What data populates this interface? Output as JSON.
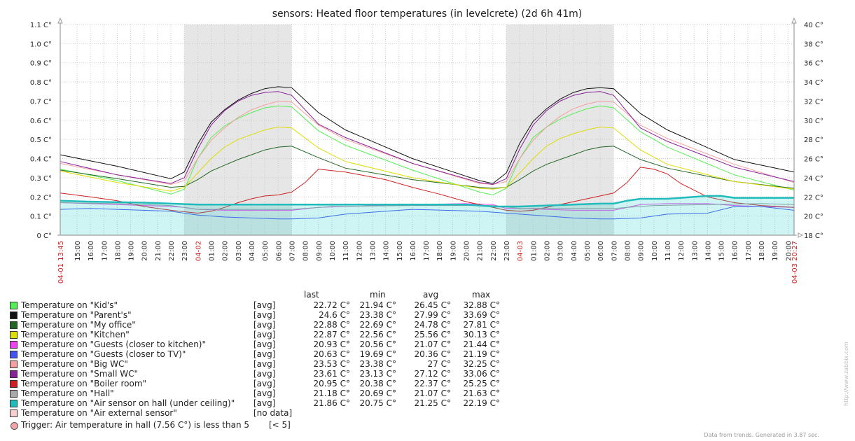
{
  "chart_data": {
    "type": "line",
    "title": "sensors: Heated floor temperatures (in levelcrete) (2d 6h 41m)",
    "left_axis": {
      "ticks": [
        "0 C°",
        "0.1 C°",
        "0.2 C°",
        "0.3 C°",
        "0.4 C°",
        "0.5 C°",
        "0.6 C°",
        "0.7 C°",
        "0.8 C°",
        "0.9 C°",
        "1.0 C°",
        "1.1 C°"
      ],
      "range": [
        0,
        1.1
      ]
    },
    "right_axis": {
      "ticks": [
        "18 C°",
        "20 C°",
        "22 C°",
        "24 C°",
        "26 C°",
        "28 C°",
        "30 C°",
        "32 C°",
        "34 C°",
        "36 C°",
        "38 C°",
        "40 C°"
      ],
      "range": [
        18,
        40
      ]
    },
    "x_range": [
      13.75,
      68.45
    ],
    "x_start_label": "04-01 13:45",
    "x_end_label": "04-03 20:27",
    "x_ticks": [
      {
        "t": 15,
        "label": "15:00"
      },
      {
        "t": 16,
        "label": "16:00"
      },
      {
        "t": 17,
        "label": "17:00"
      },
      {
        "t": 18,
        "label": "18:00"
      },
      {
        "t": 19,
        "label": "19:00"
      },
      {
        "t": 20,
        "label": "20:00"
      },
      {
        "t": 21,
        "label": "21:00"
      },
      {
        "t": 22,
        "label": "22:00"
      },
      {
        "t": 23,
        "label": "23:00"
      },
      {
        "t": 24,
        "label": "04-02",
        "date": true
      },
      {
        "t": 25,
        "label": "01:00"
      },
      {
        "t": 26,
        "label": "02:00"
      },
      {
        "t": 27,
        "label": "03:00"
      },
      {
        "t": 28,
        "label": "04:00"
      },
      {
        "t": 29,
        "label": "05:00"
      },
      {
        "t": 30,
        "label": "06:00"
      },
      {
        "t": 31,
        "label": "07:00"
      },
      {
        "t": 32,
        "label": "08:00"
      },
      {
        "t": 33,
        "label": "09:00"
      },
      {
        "t": 34,
        "label": "10:00"
      },
      {
        "t": 35,
        "label": "11:00"
      },
      {
        "t": 36,
        "label": "12:00"
      },
      {
        "t": 37,
        "label": "13:00"
      },
      {
        "t": 38,
        "label": "14:00"
      },
      {
        "t": 39,
        "label": "15:00"
      },
      {
        "t": 40,
        "label": "16:00"
      },
      {
        "t": 41,
        "label": "17:00"
      },
      {
        "t": 42,
        "label": "18:00"
      },
      {
        "t": 43,
        "label": "19:00"
      },
      {
        "t": 44,
        "label": "20:00"
      },
      {
        "t": 45,
        "label": "21:00"
      },
      {
        "t": 46,
        "label": "22:00"
      },
      {
        "t": 47,
        "label": "23:00"
      },
      {
        "t": 48,
        "label": "04-03",
        "date": true
      },
      {
        "t": 49,
        "label": "01:00"
      },
      {
        "t": 50,
        "label": "02:00"
      },
      {
        "t": 51,
        "label": "03:00"
      },
      {
        "t": 52,
        "label": "04:00"
      },
      {
        "t": 53,
        "label": "05:00"
      },
      {
        "t": 54,
        "label": "06:00"
      },
      {
        "t": 55,
        "label": "07:00"
      },
      {
        "t": 56,
        "label": "08:00"
      },
      {
        "t": 57,
        "label": "09:00"
      },
      {
        "t": 58,
        "label": "10:00"
      },
      {
        "t": 59,
        "label": "11:00"
      },
      {
        "t": 60,
        "label": "12:00"
      },
      {
        "t": 61,
        "label": "13:00"
      },
      {
        "t": 62,
        "label": "14:00"
      },
      {
        "t": 63,
        "label": "15:00"
      },
      {
        "t": 64,
        "label": "16:00"
      },
      {
        "t": 65,
        "label": "17:00"
      },
      {
        "t": 66,
        "label": "18:00"
      },
      {
        "t": 67,
        "label": "19:00"
      },
      {
        "t": 68,
        "label": "20:00"
      }
    ],
    "shaded_periods": [
      [
        23,
        31
      ],
      [
        47,
        55
      ]
    ],
    "series": [
      {
        "name": "Kid's",
        "color": "#55ee55",
        "kind": "line",
        "x": [
          13.75,
          18,
          22,
          23,
          24,
          25,
          26,
          27,
          28,
          29,
          30,
          31,
          33,
          35,
          40,
          45,
          46,
          47,
          48,
          49,
          50,
          51,
          52,
          53,
          54,
          55,
          57,
          59,
          64,
          68.45
        ],
        "y": [
          24.9,
          23.7,
          22.3,
          22.8,
          26.0,
          28.2,
          29.4,
          30.2,
          30.8,
          31.3,
          31.5,
          31.4,
          28.9,
          27.4,
          24.8,
          22.5,
          22.2,
          22.9,
          26.0,
          28.2,
          29.3,
          30.1,
          30.7,
          31.2,
          31.5,
          31.3,
          28.8,
          27.2,
          24.3,
          22.7
        ]
      },
      {
        "name": "Parent's",
        "color": "#111111",
        "kind": "line",
        "x": [
          13.75,
          18,
          22,
          23,
          24,
          25,
          26,
          27,
          28,
          29,
          30,
          31,
          33,
          35,
          40,
          45,
          46,
          47,
          48,
          49,
          50,
          51,
          52,
          53,
          54,
          55,
          57,
          59,
          64,
          68.45
        ],
        "y": [
          26.4,
          25.2,
          23.9,
          24.6,
          27.5,
          29.8,
          31.1,
          32.1,
          32.8,
          33.3,
          33.5,
          33.4,
          30.8,
          29.0,
          26.0,
          23.7,
          23.4,
          24.5,
          27.6,
          29.9,
          31.2,
          32.2,
          32.9,
          33.3,
          33.4,
          33.3,
          30.7,
          29.0,
          25.9,
          24.6
        ]
      },
      {
        "name": "My office",
        "color": "#226622",
        "kind": "line",
        "x": [
          13.75,
          18,
          22,
          23,
          24,
          25,
          26,
          27,
          28,
          29,
          30,
          31,
          33,
          35,
          40,
          45,
          46,
          47,
          48,
          49,
          50,
          51,
          52,
          53,
          54,
          55,
          57,
          59,
          64,
          68.45
        ],
        "y": [
          24.8,
          23.9,
          23.0,
          23.1,
          23.8,
          24.7,
          25.3,
          25.9,
          26.4,
          26.9,
          27.2,
          27.3,
          26.1,
          25.0,
          23.8,
          23.0,
          22.9,
          23.0,
          23.8,
          24.7,
          25.4,
          25.9,
          26.4,
          26.9,
          27.2,
          27.3,
          25.9,
          25.0,
          23.6,
          22.9
        ]
      },
      {
        "name": "Kitchen",
        "color": "#dddd00",
        "kind": "line",
        "x": [
          13.75,
          18,
          22,
          23,
          24,
          25,
          26,
          27,
          28,
          29,
          30,
          31,
          33,
          35,
          40,
          45,
          46,
          47,
          48,
          49,
          50,
          51,
          52,
          53,
          54,
          55,
          57,
          59,
          64,
          68.45
        ],
        "y": [
          24.7,
          23.5,
          22.6,
          23.0,
          24.5,
          26.0,
          27.2,
          28.0,
          28.5,
          29.0,
          29.3,
          29.2,
          27.1,
          25.7,
          24.0,
          22.9,
          22.8,
          23.0,
          24.5,
          26.0,
          27.3,
          28.1,
          28.6,
          29.0,
          29.3,
          29.2,
          26.9,
          25.4,
          23.6,
          22.8
        ]
      },
      {
        "name": "Guests (closer to kitchen)",
        "color": "#ee44ee",
        "kind": "line",
        "x": [
          13.75,
          18,
          22,
          23,
          24,
          26,
          28,
          30,
          31,
          33,
          35,
          40,
          44,
          46,
          47,
          48,
          50,
          52,
          54,
          55,
          57,
          59,
          62,
          64,
          66,
          68.45
        ],
        "y": [
          21.4,
          21.2,
          21.0,
          20.9,
          20.7,
          20.6,
          20.6,
          20.6,
          20.6,
          20.9,
          21.0,
          21.2,
          21.3,
          21.2,
          20.8,
          20.8,
          20.7,
          20.6,
          20.6,
          20.6,
          21.2,
          21.3,
          21.3,
          21.1,
          21.0,
          20.9
        ]
      },
      {
        "name": "Guests (closer to TV)",
        "color": "#4455ee",
        "kind": "line",
        "x": [
          13.75,
          16,
          18,
          22,
          24,
          26,
          28,
          30,
          31,
          33,
          35,
          38,
          40,
          45,
          47,
          48,
          50,
          52,
          54,
          55,
          57,
          59,
          62,
          64,
          66,
          68.45
        ],
        "y": [
          20.7,
          20.8,
          20.7,
          20.5,
          20.1,
          19.9,
          19.8,
          19.7,
          19.7,
          19.8,
          20.2,
          20.5,
          20.7,
          20.5,
          20.3,
          20.2,
          20.0,
          19.8,
          19.7,
          19.7,
          19.8,
          20.2,
          20.3,
          21.0,
          21.0,
          20.6
        ]
      },
      {
        "name": "Big WC",
        "color": "#f4a0a0",
        "kind": "line",
        "x": [
          13.75,
          18,
          22,
          23,
          24,
          25,
          26,
          27,
          28,
          29,
          30,
          31,
          33,
          35,
          40,
          45,
          46,
          47,
          48,
          49,
          50,
          51,
          52,
          53,
          54,
          55,
          57,
          59,
          64,
          68.45
        ],
        "y": [
          25.5,
          24.3,
          23.3,
          23.7,
          26.0,
          27.9,
          29.2,
          30.3,
          31.1,
          31.6,
          32.0,
          31.9,
          29.5,
          28.0,
          25.5,
          23.4,
          23.3,
          23.6,
          26.0,
          27.9,
          29.3,
          30.4,
          31.2,
          31.7,
          32.0,
          31.9,
          29.5,
          28.1,
          25.4,
          23.5
        ]
      },
      {
        "name": "Small WC",
        "color": "#882299",
        "kind": "line",
        "x": [
          13.75,
          18,
          22,
          23,
          24,
          25,
          26,
          27,
          28,
          29,
          30,
          31,
          33,
          35,
          40,
          45,
          46,
          47,
          48,
          49,
          50,
          51,
          52,
          53,
          54,
          55,
          57,
          59,
          64,
          68.45
        ],
        "y": [
          25.7,
          24.3,
          23.4,
          24.0,
          27.0,
          29.5,
          31.0,
          32.0,
          32.6,
          32.9,
          33.0,
          32.6,
          29.6,
          28.2,
          25.5,
          23.5,
          23.3,
          23.9,
          27.0,
          29.5,
          31.0,
          32.0,
          32.6,
          32.9,
          33.0,
          32.6,
          29.2,
          27.8,
          25.1,
          23.6
        ]
      },
      {
        "name": "Boiler room",
        "color": "#cc2222",
        "kind": "line",
        "x": [
          13.75,
          16,
          18,
          20,
          22,
          24,
          25,
          26,
          27,
          28,
          29,
          30,
          31,
          32,
          33,
          35,
          38,
          40,
          42,
          44,
          46,
          47,
          48,
          49,
          50,
          51,
          52,
          53,
          54,
          55,
          56,
          57,
          58,
          59,
          60,
          62,
          64,
          66,
          68.45
        ],
        "y": [
          22.4,
          22.0,
          21.6,
          21.0,
          20.6,
          20.3,
          20.5,
          20.9,
          21.4,
          21.8,
          22.1,
          22.2,
          22.5,
          23.5,
          24.9,
          24.6,
          23.8,
          23.0,
          22.3,
          21.5,
          20.9,
          20.6,
          20.5,
          20.6,
          20.9,
          21.2,
          21.5,
          21.8,
          22.1,
          22.4,
          23.5,
          25.1,
          24.9,
          24.4,
          23.4,
          22.0,
          21.4,
          21.1,
          20.9
        ]
      },
      {
        "name": "Hall",
        "color": "#999999",
        "kind": "line",
        "x": [
          13.75,
          18,
          22,
          24,
          28,
          31,
          34,
          40,
          46,
          48,
          52,
          55,
          58,
          62,
          66,
          68.45
        ],
        "y": [
          21.4,
          21.3,
          21.1,
          20.7,
          20.7,
          20.7,
          21.0,
          21.1,
          21.1,
          20.8,
          20.8,
          20.8,
          21.1,
          21.2,
          21.3,
          21.2
        ]
      },
      {
        "name": "Air sensor on hall (under ceiling)",
        "color": "#22bbbb",
        "kind": "area",
        "x": [
          13.75,
          16,
          20,
          24,
          28,
          31,
          34,
          38,
          42,
          44,
          46,
          48,
          50,
          52,
          54,
          55,
          56,
          57,
          58,
          59,
          60,
          62,
          63,
          64,
          66,
          68.45
        ],
        "y": [
          21.6,
          21.5,
          21.4,
          21.2,
          21.2,
          21.2,
          21.2,
          21.2,
          21.2,
          21.2,
          21.0,
          21.0,
          21.1,
          21.2,
          21.3,
          21.3,
          21.6,
          21.8,
          21.8,
          21.8,
          21.9,
          22.1,
          22.1,
          21.9,
          21.9,
          21.9
        ]
      },
      {
        "name": "Air external sensor",
        "color": "#f8d0d0",
        "kind": "line",
        "x": [],
        "y": []
      }
    ],
    "legend_columns": [
      "last",
      "min",
      "avg",
      "max"
    ],
    "legend": [
      {
        "name": "Temperature on \"Kid's\"",
        "color": "#55ee55",
        "func": "[avg]",
        "last": "22.72 C°",
        "min": "21.94 C°",
        "avg": "26.45 C°",
        "max": "32.88 C°"
      },
      {
        "name": "Temperature on \"Parent's\"",
        "color": "#111111",
        "func": "[avg]",
        "last": "24.6 C°",
        "min": "23.38 C°",
        "avg": "27.99 C°",
        "max": "33.69 C°"
      },
      {
        "name": "Temperature on \"My office\"",
        "color": "#226622",
        "func": "[avg]",
        "last": "22.88 C°",
        "min": "22.69 C°",
        "avg": "24.78 C°",
        "max": "27.81 C°"
      },
      {
        "name": "Temperature on \"Kitchen\"",
        "color": "#dddd00",
        "func": "[avg]",
        "last": "22.87 C°",
        "min": "22.56 C°",
        "avg": "25.56 C°",
        "max": "30.13 C°"
      },
      {
        "name": "Temperature on \"Guests (closer to kitchen)\"",
        "color": "#ee44ee",
        "func": "[avg]",
        "last": "20.93 C°",
        "min": "20.56 C°",
        "avg": "21.07 C°",
        "max": "21.44 C°"
      },
      {
        "name": "Temperature on \"Guests (closer to TV)\"",
        "color": "#4455ee",
        "func": "[avg]",
        "last": "20.63 C°",
        "min": "19.69 C°",
        "avg": "20.36 C°",
        "max": "21.19 C°"
      },
      {
        "name": "Temperature on \"Big WC\"",
        "color": "#f4a0a0",
        "func": "[avg]",
        "last": "23.53 C°",
        "min": "23.38 C°",
        "avg": "27 C°",
        "max": "32.25 C°"
      },
      {
        "name": "Temperature on \"Small WC\"",
        "color": "#882299",
        "func": "[avg]",
        "last": "23.61 C°",
        "min": "23.13 C°",
        "avg": "27.12 C°",
        "max": "33.06 C°"
      },
      {
        "name": "Temperature on \"Boiler room\"",
        "color": "#cc2222",
        "func": "[avg]",
        "last": "20.95 C°",
        "min": "20.38 C°",
        "avg": "22.37 C°",
        "max": "25.25 C°"
      },
      {
        "name": "Temperature on \"Hall\"",
        "color": "#aaaaaa",
        "func": "[avg]",
        "last": "21.18 C°",
        "min": "20.69 C°",
        "avg": "21.07 C°",
        "max": "21.63 C°"
      },
      {
        "name": "Temperature on \"Air sensor on hall (under ceiling)\"",
        "color": "#22bbbb",
        "func": "[avg]",
        "last": "21.86 C°",
        "min": "20.75 C°",
        "avg": "21.25 C°",
        "max": "22.19 C°"
      },
      {
        "name": "Temperature on \"Air external sensor\"",
        "color": "#f8d0d0",
        "func": "[no data]",
        "last": "",
        "min": "",
        "avg": "",
        "max": ""
      }
    ],
    "trigger": {
      "text": "Trigger: Air temperature in hall (7.56 C°) is less than 5",
      "condition": "[< 5]",
      "color": "#f4a6a6"
    }
  },
  "footer": "Data from trends. Generated in 3.87 sec.",
  "side_url": "http://www.zabbix.com"
}
